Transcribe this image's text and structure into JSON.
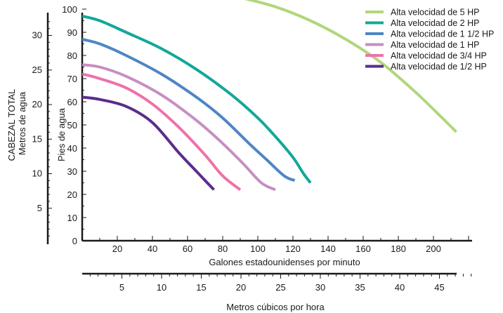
{
  "chart_data": {
    "type": "line",
    "left_axis_outer": {
      "label_line1": "CABEZAL TOTAL",
      "label_line2": "Metros de agua",
      "ticks": [
        5,
        10,
        15,
        20,
        25,
        30
      ]
    },
    "left_axis_inner": {
      "label": "Pies de agua",
      "ticks": [
        0,
        10,
        20,
        30,
        40,
        50,
        60,
        70,
        80,
        90,
        100
      ]
    },
    "x_axis_primary": {
      "label": "Galones estadounidenses por minuto",
      "ticks": [
        20,
        40,
        60,
        80,
        100,
        120,
        140,
        160,
        180,
        200
      ]
    },
    "x_axis_secondary": {
      "label": "Metros cúbicos por hora",
      "ticks": [
        5,
        10,
        15,
        20,
        25,
        30,
        35,
        40,
        45
      ]
    },
    "xlim": [
      0,
      220
    ],
    "ylim": [
      0,
      110
    ],
    "grid": false,
    "legend_position": "top-right",
    "series": [
      {
        "name": "Alta velocidad de 5 HP",
        "color": "#b2d67c",
        "points": [
          [
            0,
            112
          ],
          [
            10,
            112
          ],
          [
            30,
            111
          ],
          [
            50,
            110
          ],
          [
            70,
            108
          ],
          [
            90,
            105
          ],
          [
            110,
            101
          ],
          [
            130,
            95
          ],
          [
            150,
            87
          ],
          [
            170,
            77
          ],
          [
            190,
            64
          ],
          [
            205,
            53
          ],
          [
            213,
            47
          ]
        ]
      },
      {
        "name": "Alta velocidad de 2 HP",
        "color": "#12a89a",
        "points": [
          [
            0,
            97
          ],
          [
            10,
            95
          ],
          [
            25,
            90
          ],
          [
            45,
            83
          ],
          [
            65,
            74
          ],
          [
            85,
            63
          ],
          [
            100,
            53
          ],
          [
            110,
            45
          ],
          [
            120,
            36
          ],
          [
            126,
            29
          ],
          [
            130,
            25
          ]
        ]
      },
      {
        "name": "Alta velocidad de 1  1/2 HP",
        "color": "#4d86c6",
        "points": [
          [
            0,
            87
          ],
          [
            10,
            85
          ],
          [
            25,
            80
          ],
          [
            45,
            72
          ],
          [
            65,
            62
          ],
          [
            80,
            53
          ],
          [
            95,
            42
          ],
          [
            105,
            35
          ],
          [
            115,
            28
          ],
          [
            121,
            26
          ]
        ]
      },
      {
        "name": "Alta velocidad de 1 HP",
        "color": "#c58fc2",
        "points": [
          [
            0,
            76
          ],
          [
            10,
            75
          ],
          [
            25,
            71
          ],
          [
            45,
            63
          ],
          [
            65,
            52
          ],
          [
            80,
            42
          ],
          [
            92,
            33
          ],
          [
            102,
            25
          ],
          [
            110,
            22
          ]
        ]
      },
      {
        "name": "Alta velocidad de 3/4 HP",
        "color": "#ee72aa",
        "points": [
          [
            0,
            72
          ],
          [
            10,
            70
          ],
          [
            25,
            66
          ],
          [
            40,
            59
          ],
          [
            55,
            49
          ],
          [
            70,
            37
          ],
          [
            80,
            28
          ],
          [
            90,
            22
          ]
        ]
      },
      {
        "name": "Alta velocidad de 1/2 HP",
        "color": "#5b2d8c",
        "points": [
          [
            0,
            62
          ],
          [
            10,
            61
          ],
          [
            25,
            58
          ],
          [
            40,
            51
          ],
          [
            55,
            38
          ],
          [
            65,
            30
          ],
          [
            75,
            22
          ]
        ]
      }
    ]
  }
}
